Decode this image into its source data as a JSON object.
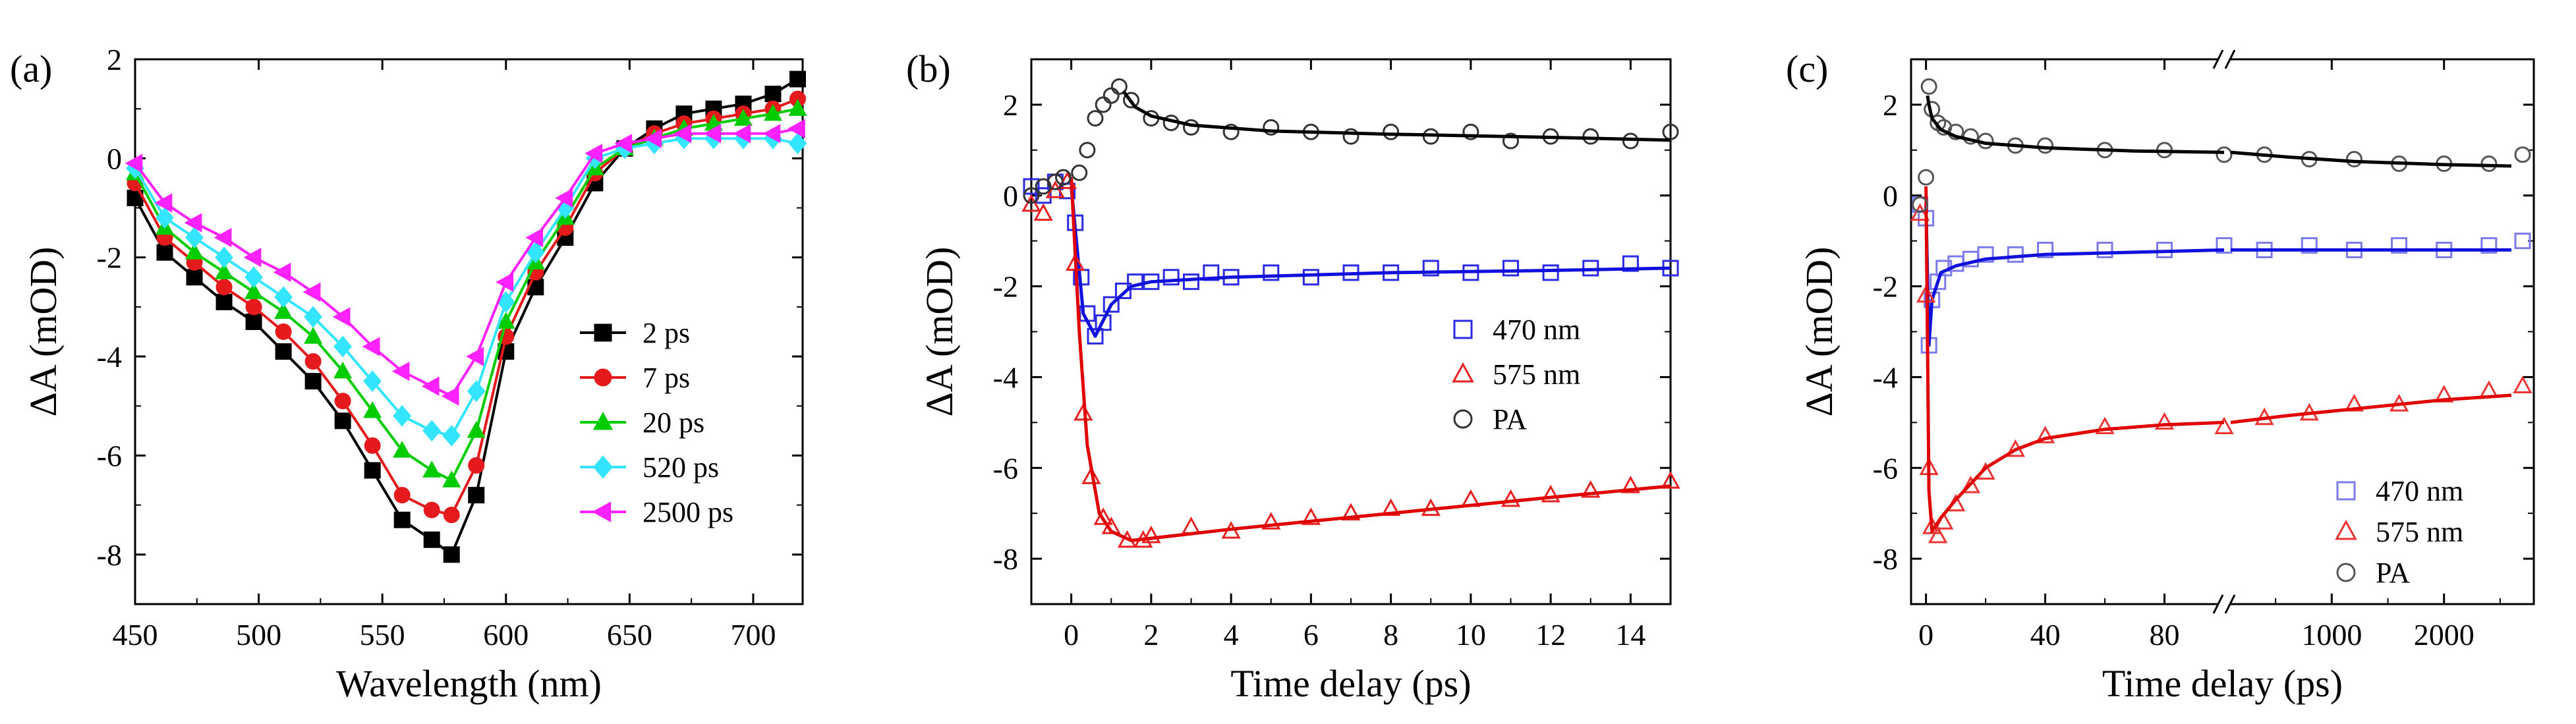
{
  "chart_data": [
    {
      "panel": "(a)",
      "type": "line",
      "xlabel": "Wavelength (nm)",
      "ylabel": "ΔA (mOD)",
      "xlim": [
        450,
        720
      ],
      "ylim": [
        -9,
        2
      ],
      "xticks": [
        450,
        500,
        550,
        600,
        650,
        700
      ],
      "yticks": [
        2,
        0,
        -2,
        -4,
        -6,
        -8
      ],
      "legend_position": "lower-right",
      "x": [
        450,
        462,
        474,
        486,
        498,
        510,
        522,
        534,
        546,
        558,
        570,
        578,
        588,
        600,
        612,
        624,
        636,
        648,
        660,
        672,
        684,
        696,
        708,
        718
      ],
      "series": [
        {
          "name": "2 ps",
          "color": "#000000",
          "marker": "square",
          "values": [
            -0.8,
            -1.9,
            -2.4,
            -2.9,
            -3.3,
            -3.9,
            -4.5,
            -5.3,
            -6.3,
            -7.3,
            -7.7,
            -8.0,
            -6.8,
            -3.9,
            -2.6,
            -1.6,
            -0.5,
            0.2,
            0.6,
            0.9,
            1.0,
            1.1,
            1.3,
            1.6
          ]
        },
        {
          "name": "7 ps",
          "color": "#e41a1c",
          "marker": "circle",
          "values": [
            -0.5,
            -1.6,
            -2.1,
            -2.6,
            -3.0,
            -3.5,
            -4.1,
            -4.9,
            -5.8,
            -6.8,
            -7.1,
            -7.2,
            -6.2,
            -3.6,
            -2.3,
            -1.4,
            -0.3,
            0.2,
            0.5,
            0.7,
            0.8,
            0.9,
            1.0,
            1.2
          ]
        },
        {
          "name": "20 ps",
          "color": "#00cc00",
          "marker": "triangle-up",
          "values": [
            -0.3,
            -1.4,
            -1.9,
            -2.3,
            -2.7,
            -3.1,
            -3.6,
            -4.3,
            -5.1,
            -5.9,
            -6.3,
            -6.5,
            -5.5,
            -3.3,
            -2.1,
            -1.2,
            -0.2,
            0.2,
            0.4,
            0.6,
            0.7,
            0.8,
            0.9,
            1.0
          ]
        },
        {
          "name": "520 ps",
          "color": "#33e5ff",
          "marker": "diamond",
          "values": [
            -0.2,
            -1.2,
            -1.6,
            -2.0,
            -2.4,
            -2.8,
            -3.2,
            -3.8,
            -4.5,
            -5.2,
            -5.5,
            -5.6,
            -4.7,
            -2.9,
            -1.9,
            -1.0,
            0.0,
            0.2,
            0.3,
            0.4,
            0.4,
            0.4,
            0.4,
            0.3
          ]
        },
        {
          "name": "2500 ps",
          "color": "#ff22ff",
          "marker": "triangle-left",
          "values": [
            -0.1,
            -0.9,
            -1.3,
            -1.6,
            -2.0,
            -2.3,
            -2.7,
            -3.2,
            -3.8,
            -4.3,
            -4.6,
            -4.8,
            -4.0,
            -2.5,
            -1.6,
            -0.8,
            0.1,
            0.3,
            0.4,
            0.5,
            0.5,
            0.5,
            0.5,
            0.6
          ]
        }
      ]
    },
    {
      "panel": "(b)",
      "type": "scatter",
      "xlabel": "Time delay (ps)",
      "ylabel": "ΔA (mOD)",
      "xlim": [
        -1,
        15
      ],
      "ylim": [
        -9,
        3
      ],
      "xticks": [
        0,
        2,
        4,
        6,
        8,
        10,
        12,
        14
      ],
      "yticks": [
        2,
        0,
        -2,
        -4,
        -6,
        -8
      ],
      "legend_position": "center-right",
      "series": [
        {
          "name": "470 nm",
          "color": "#2a2ae6",
          "marker": "square",
          "points": [
            [
              -1.0,
              0.2
            ],
            [
              -0.7,
              0.0
            ],
            [
              -0.4,
              0.3
            ],
            [
              -0.1,
              0.1
            ],
            [
              0.1,
              -0.6
            ],
            [
              0.25,
              -1.8
            ],
            [
              0.4,
              -2.6
            ],
            [
              0.6,
              -3.1
            ],
            [
              0.8,
              -2.8
            ],
            [
              1.0,
              -2.4
            ],
            [
              1.3,
              -2.1
            ],
            [
              1.6,
              -1.9
            ],
            [
              2.0,
              -1.9
            ],
            [
              2.5,
              -1.8
            ],
            [
              3.0,
              -1.9
            ],
            [
              3.5,
              -1.7
            ],
            [
              4.0,
              -1.8
            ],
            [
              5.0,
              -1.7
            ],
            [
              6.0,
              -1.8
            ],
            [
              7.0,
              -1.7
            ],
            [
              8.0,
              -1.7
            ],
            [
              9.0,
              -1.6
            ],
            [
              10.0,
              -1.7
            ],
            [
              11.0,
              -1.6
            ],
            [
              12.0,
              -1.7
            ],
            [
              13.0,
              -1.6
            ],
            [
              14.0,
              -1.5
            ],
            [
              15.0,
              -1.6
            ]
          ],
          "fit": [
            [
              0.0,
              0.2
            ],
            [
              0.3,
              -2.6
            ],
            [
              0.6,
              -3.1
            ],
            [
              1.0,
              -2.4
            ],
            [
              1.5,
              -2.0
            ],
            [
              2.0,
              -1.9
            ],
            [
              4.0,
              -1.8
            ],
            [
              8.0,
              -1.7
            ],
            [
              12.0,
              -1.65
            ],
            [
              15.0,
              -1.6
            ]
          ]
        },
        {
          "name": "575 nm",
          "color": "#e82020",
          "marker": "triangle-up",
          "points": [
            [
              -1.0,
              -0.2
            ],
            [
              -0.7,
              -0.4
            ],
            [
              -0.4,
              0.1
            ],
            [
              -0.1,
              0.3
            ],
            [
              0.1,
              -1.5
            ],
            [
              0.3,
              -4.8
            ],
            [
              0.5,
              -6.2
            ],
            [
              0.8,
              -7.1
            ],
            [
              1.0,
              -7.3
            ],
            [
              1.4,
              -7.6
            ],
            [
              1.8,
              -7.6
            ],
            [
              2.0,
              -7.5
            ],
            [
              3.0,
              -7.3
            ],
            [
              4.0,
              -7.4
            ],
            [
              5.0,
              -7.2
            ],
            [
              6.0,
              -7.1
            ],
            [
              7.0,
              -7.0
            ],
            [
              8.0,
              -6.9
            ],
            [
              9.0,
              -6.9
            ],
            [
              10.0,
              -6.7
            ],
            [
              11.0,
              -6.7
            ],
            [
              12.0,
              -6.6
            ],
            [
              13.0,
              -6.5
            ],
            [
              14.0,
              -6.4
            ],
            [
              15.0,
              -6.3
            ]
          ],
          "fit": [
            [
              0.0,
              0.4
            ],
            [
              0.2,
              -3.0
            ],
            [
              0.4,
              -5.5
            ],
            [
              0.7,
              -7.0
            ],
            [
              1.0,
              -7.4
            ],
            [
              1.5,
              -7.6
            ],
            [
              2.0,
              -7.55
            ],
            [
              4.0,
              -7.35
            ],
            [
              8.0,
              -7.0
            ],
            [
              12.0,
              -6.65
            ],
            [
              15.0,
              -6.4
            ]
          ]
        },
        {
          "name": "PA",
          "color": "#333333",
          "marker": "circle",
          "points": [
            [
              -1.0,
              0.0
            ],
            [
              -0.7,
              0.2
            ],
            [
              -0.4,
              0.3
            ],
            [
              -0.2,
              0.4
            ],
            [
              0.2,
              0.5
            ],
            [
              0.4,
              1.0
            ],
            [
              0.6,
              1.7
            ],
            [
              0.8,
              2.0
            ],
            [
              1.0,
              2.2
            ],
            [
              1.2,
              2.4
            ],
            [
              1.5,
              2.1
            ],
            [
              2.0,
              1.7
            ],
            [
              2.5,
              1.6
            ],
            [
              3.0,
              1.5
            ],
            [
              4.0,
              1.4
            ],
            [
              5.0,
              1.5
            ],
            [
              6.0,
              1.4
            ],
            [
              7.0,
              1.3
            ],
            [
              8.0,
              1.4
            ],
            [
              9.0,
              1.3
            ],
            [
              10.0,
              1.4
            ],
            [
              11.0,
              1.2
            ],
            [
              12.0,
              1.3
            ],
            [
              13.0,
              1.3
            ],
            [
              14.0,
              1.2
            ],
            [
              15.0,
              1.4
            ]
          ],
          "fit": [
            [
              1.3,
              2.3
            ],
            [
              1.6,
              1.95
            ],
            [
              2.0,
              1.75
            ],
            [
              3.0,
              1.55
            ],
            [
              5.0,
              1.42
            ],
            [
              8.0,
              1.35
            ],
            [
              12.0,
              1.28
            ],
            [
              15.0,
              1.22
            ]
          ]
        }
      ]
    },
    {
      "panel": "(c)",
      "type": "scatter",
      "xlabel": "Time delay (ps)",
      "ylabel": "ΔA (mOD)",
      "ylim": [
        -9,
        3
      ],
      "axis_break": true,
      "segment1": {
        "xlim": [
          -5,
          100
        ],
        "xticks": [
          0,
          40,
          80
        ]
      },
      "segment2": {
        "xlim": [
          100,
          2800
        ],
        "xticks": [
          1000,
          2000
        ]
      },
      "yticks": [
        2,
        0,
        -2,
        -4,
        -6,
        -8
      ],
      "legend_position": "bottom-right",
      "series": [
        {
          "name": "470 nm",
          "color": "#7b7bee",
          "marker": "square",
          "points": [
            [
              -2,
              -0.2
            ],
            [
              0,
              -0.5
            ],
            [
              1,
              -3.3
            ],
            [
              2,
              -2.3
            ],
            [
              4,
              -1.9
            ],
            [
              6,
              -1.6
            ],
            [
              10,
              -1.5
            ],
            [
              15,
              -1.4
            ],
            [
              20,
              -1.3
            ],
            [
              30,
              -1.3
            ],
            [
              40,
              -1.2
            ],
            [
              60,
              -1.2
            ],
            [
              80,
              -1.2
            ],
            [
              100,
              -1.1
            ],
            [
              400,
              -1.2
            ],
            [
              800,
              -1.1
            ],
            [
              1200,
              -1.2
            ],
            [
              1600,
              -1.1
            ],
            [
              2000,
              -1.2
            ],
            [
              2400,
              -1.1
            ],
            [
              2700,
              -1.0
            ]
          ],
          "fit": [
            [
              0,
              -0.2
            ],
            [
              1,
              -3.3
            ],
            [
              2,
              -2.3
            ],
            [
              5,
              -1.7
            ],
            [
              10,
              -1.55
            ],
            [
              20,
              -1.4
            ],
            [
              40,
              -1.3
            ],
            [
              70,
              -1.25
            ],
            [
              100,
              -1.2
            ],
            [
              1000,
              -1.2
            ],
            [
              2000,
              -1.2
            ],
            [
              2600,
              -1.2
            ]
          ]
        },
        {
          "name": "575 nm",
          "color": "#ee3333",
          "marker": "triangle-up",
          "points": [
            [
              -2,
              -0.4
            ],
            [
              0,
              -2.2
            ],
            [
              1,
              -6.0
            ],
            [
              2,
              -7.3
            ],
            [
              4,
              -7.5
            ],
            [
              6,
              -7.2
            ],
            [
              10,
              -6.8
            ],
            [
              15,
              -6.4
            ],
            [
              20,
              -6.1
            ],
            [
              30,
              -5.6
            ],
            [
              40,
              -5.3
            ],
            [
              60,
              -5.1
            ],
            [
              80,
              -5.0
            ],
            [
              100,
              -5.1
            ],
            [
              400,
              -4.9
            ],
            [
              800,
              -4.8
            ],
            [
              1200,
              -4.6
            ],
            [
              1600,
              -4.6
            ],
            [
              2000,
              -4.4
            ],
            [
              2400,
              -4.3
            ],
            [
              2700,
              -4.2
            ]
          ],
          "fit": [
            [
              0,
              0.2
            ],
            [
              1,
              -6.5
            ],
            [
              2,
              -7.4
            ],
            [
              5,
              -7.1
            ],
            [
              10,
              -6.7
            ],
            [
              20,
              -6.0
            ],
            [
              30,
              -5.6
            ],
            [
              40,
              -5.35
            ],
            [
              60,
              -5.15
            ],
            [
              80,
              -5.05
            ],
            [
              100,
              -5.0
            ],
            [
              600,
              -4.85
            ],
            [
              1200,
              -4.7
            ],
            [
              2000,
              -4.5
            ],
            [
              2600,
              -4.4
            ]
          ]
        },
        {
          "name": "PA",
          "color": "#555555",
          "marker": "circle",
          "points": [
            [
              -2,
              -0.2
            ],
            [
              0,
              0.4
            ],
            [
              1,
              2.4
            ],
            [
              2,
              1.9
            ],
            [
              4,
              1.6
            ],
            [
              6,
              1.5
            ],
            [
              10,
              1.4
            ],
            [
              15,
              1.3
            ],
            [
              20,
              1.2
            ],
            [
              30,
              1.1
            ],
            [
              40,
              1.1
            ],
            [
              60,
              1.0
            ],
            [
              80,
              1.0
            ],
            [
              100,
              0.9
            ],
            [
              400,
              0.9
            ],
            [
              800,
              0.8
            ],
            [
              1200,
              0.8
            ],
            [
              1600,
              0.7
            ],
            [
              2000,
              0.7
            ],
            [
              2400,
              0.7
            ],
            [
              2700,
              0.9
            ]
          ],
          "fit": [
            [
              0.5,
              2.2
            ],
            [
              1,
              2.0
            ],
            [
              2,
              1.7
            ],
            [
              5,
              1.45
            ],
            [
              10,
              1.3
            ],
            [
              20,
              1.15
            ],
            [
              40,
              1.05
            ],
            [
              70,
              0.98
            ],
            [
              100,
              0.95
            ],
            [
              600,
              0.85
            ],
            [
              1200,
              0.75
            ],
            [
              2000,
              0.68
            ],
            [
              2600,
              0.65
            ]
          ]
        }
      ]
    }
  ]
}
